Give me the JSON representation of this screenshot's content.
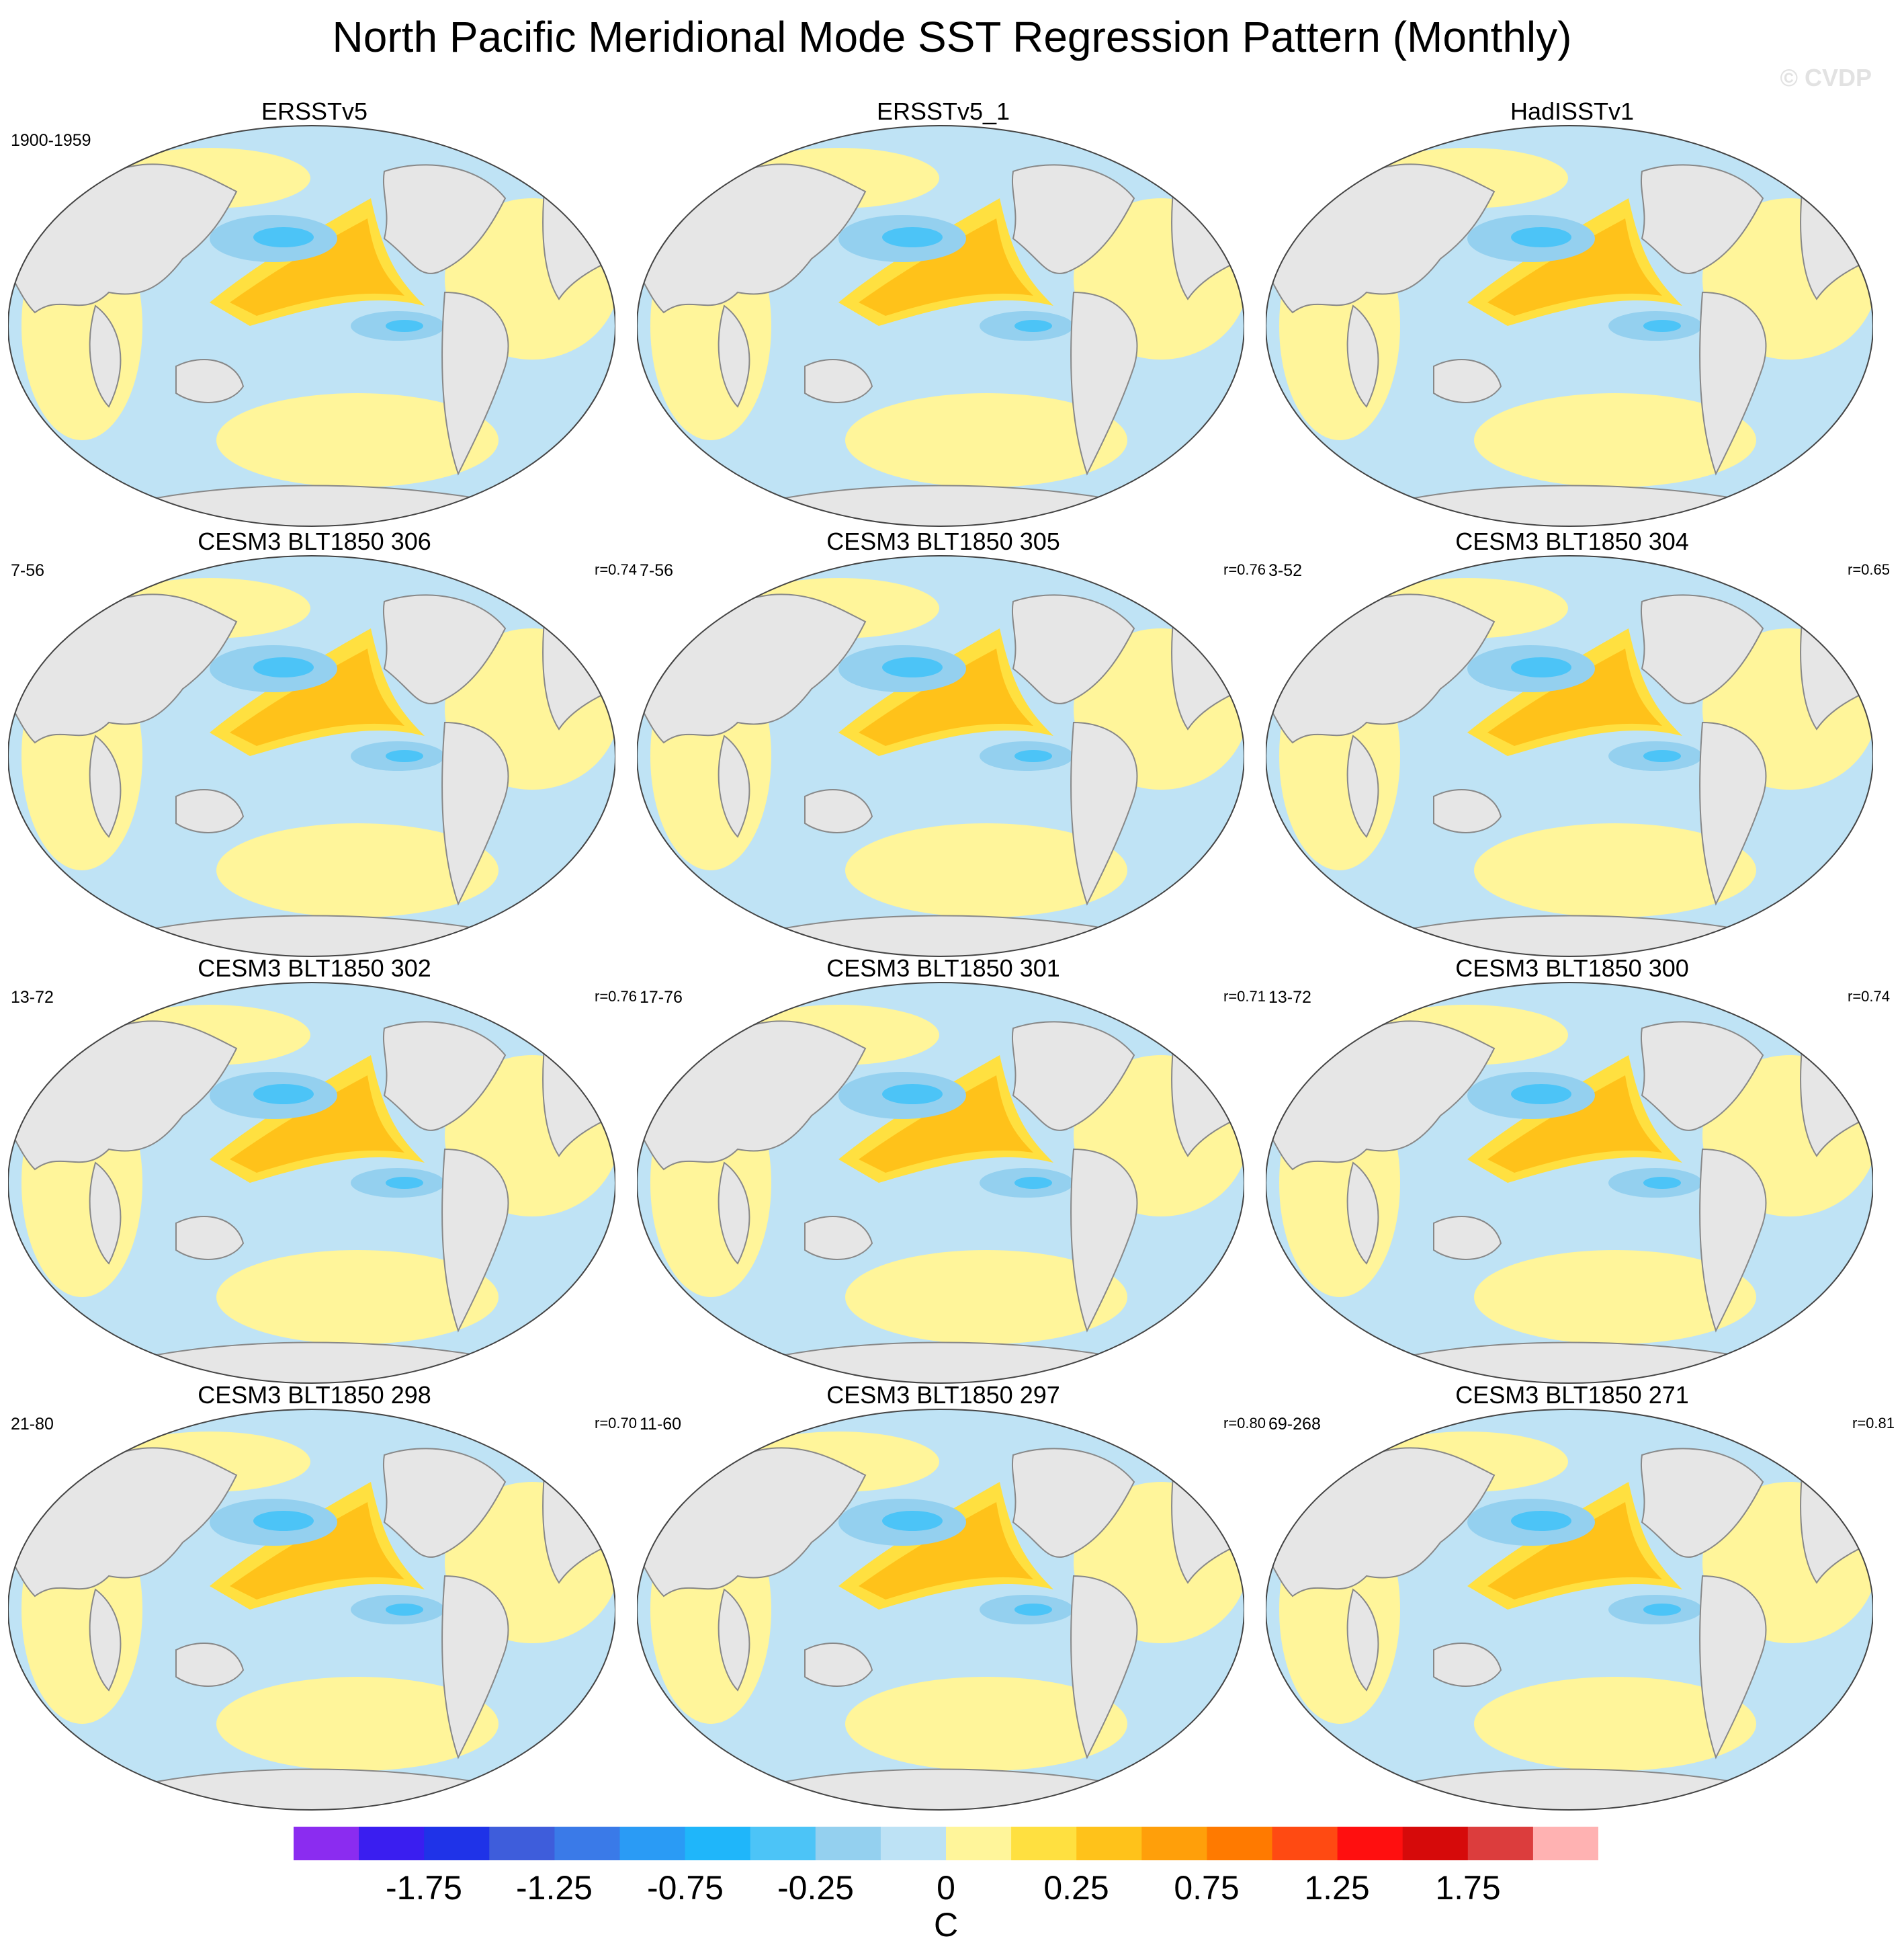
{
  "title": "North Pacific Meridional Mode SST Regression Pattern (Monthly)",
  "watermark": "© CVDP",
  "panels": [
    {
      "title": "ERSSTv5",
      "years": "1900-1959",
      "corr": null
    },
    {
      "title": "ERSSTv5_1",
      "years": null,
      "corr": null
    },
    {
      "title": "HadISSTv1",
      "years": null,
      "corr": null
    },
    {
      "title": "CESM3 BLT1850 306",
      "years": "7-56",
      "corr": "r=0.74"
    },
    {
      "title": "CESM3 BLT1850 305",
      "years": "7-56",
      "corr": "r=0.76"
    },
    {
      "title": "CESM3 BLT1850 304",
      "years": "3-52",
      "corr": "r=0.65"
    },
    {
      "title": "CESM3 BLT1850 302",
      "years": "13-72",
      "corr": "r=0.76"
    },
    {
      "title": "CESM3 BLT1850 301",
      "years": "17-76",
      "corr": "r=0.71"
    },
    {
      "title": "CESM3 BLT1850 300",
      "years": "13-72",
      "corr": "r=0.74"
    },
    {
      "title": "CESM3 BLT1850 298",
      "years": "21-80",
      "corr": "r=0.70"
    },
    {
      "title": "CESM3 BLT1850 297",
      "years": "11-60",
      "corr": "r=0.80"
    },
    {
      "title": "CESM3 BLT1850 271",
      "years": "69-268",
      "corr": "r=0.81"
    }
  ],
  "colorbar": {
    "units": "C",
    "colors": [
      "#8b2cf0",
      "#3a1ef0",
      "#1f33e8",
      "#3e5ddb",
      "#3a7ae8",
      "#2a9bf5",
      "#1fb6fa",
      "#4cc4f7",
      "#94d0ef",
      "#bde2f5",
      "#fff59a",
      "#ffe040",
      "#ffc21a",
      "#ff9f0a",
      "#ff7a00",
      "#ff4a12",
      "#ff0f0f",
      "#d60a0a",
      "#dc3d3d",
      "#ffb2b2"
    ],
    "labels": [
      "-1.75",
      "-1.25",
      "-0.75",
      "-0.25",
      "0",
      "0.25",
      "0.75",
      "1.25",
      "1.75"
    ]
  }
}
